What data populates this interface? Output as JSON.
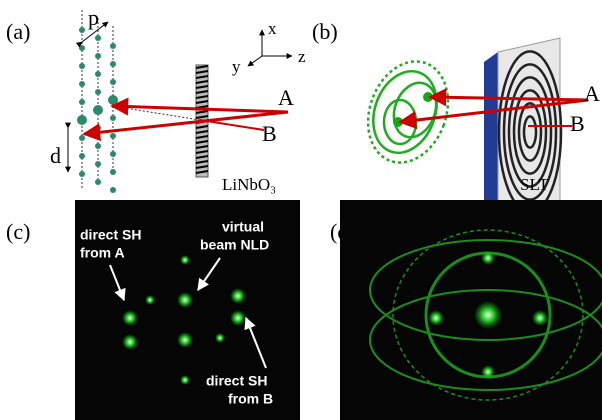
{
  "panels": [
    {
      "label": "(a)",
      "pitch": "p",
      "spacing": "d",
      "axes": [
        "x",
        "y",
        "z"
      ],
      "beams": [
        "A",
        "B"
      ],
      "crystal": "LiNbO₃"
    },
    {
      "label": "(b)",
      "beams": [
        "A",
        "B"
      ],
      "crystal": "SLT"
    },
    {
      "label": "(c)",
      "annotations": [
        [
          "direct SH",
          "from A"
        ],
        [
          "virtual",
          "beam NLD"
        ],
        [
          "direct SH",
          "from B"
        ]
      ]
    },
    {
      "label": "(d)"
    }
  ]
}
